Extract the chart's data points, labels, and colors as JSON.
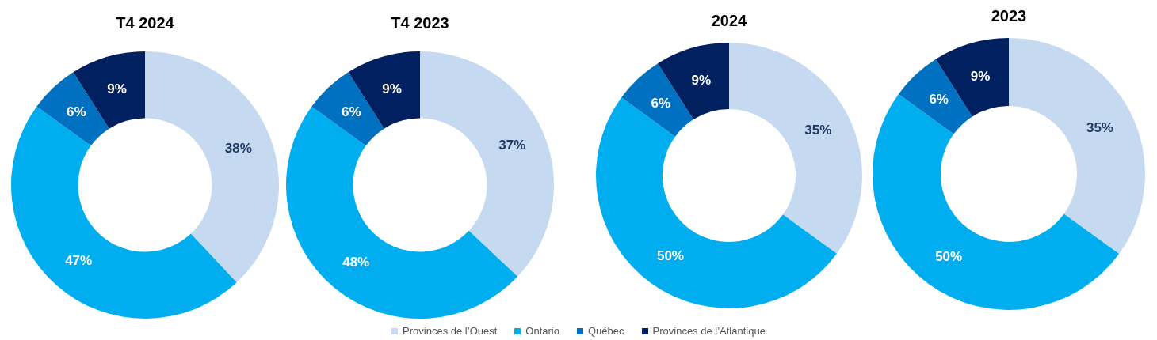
{
  "chart_data": [
    {
      "type": "donut",
      "title": "T4 2024",
      "categories": [
        "Provinces de l’Ouest",
        "Ontario",
        "Québec",
        "Provinces de l’Atlantique"
      ],
      "values": [
        38,
        47,
        6,
        9
      ],
      "value_labels": [
        "38%",
        "47%",
        "6%",
        "9%"
      ],
      "colors": [
        "#c5d9f1",
        "#00aeef",
        "#0070c0",
        "#002060"
      ],
      "legend": "bottom"
    },
    {
      "type": "donut",
      "title": "T4 2023",
      "values": [
        37,
        48,
        6,
        9
      ],
      "value_labels": [
        "37%",
        "48%",
        "6%",
        "9%"
      ],
      "colors": [
        "#c5d9f1",
        "#00aeef",
        "#0070c0",
        "#002060"
      ]
    },
    {
      "type": "donut",
      "title": "2024",
      "values": [
        35,
        50,
        6,
        9
      ],
      "value_labels": [
        "35%",
        "50%",
        "6%",
        "9%"
      ],
      "colors": [
        "#c5d9f1",
        "#00aeef",
        "#0070c0",
        "#002060"
      ]
    },
    {
      "type": "donut",
      "title": "2023",
      "values": [
        35,
        50,
        6,
        9
      ],
      "value_labels": [
        "35%",
        "50%",
        "6%",
        "9%"
      ],
      "colors": [
        "#c5d9f1",
        "#00aeef",
        "#0070c0",
        "#002060"
      ]
    }
  ]
}
